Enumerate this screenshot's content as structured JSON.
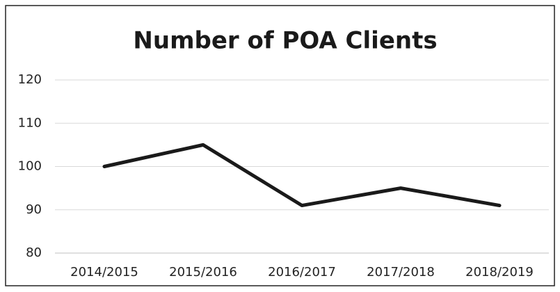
{
  "chart_data": {
    "type": "line",
    "title": "Number of POA Clients",
    "categories": [
      "2014/2015",
      "2015/2016",
      "2016/2017",
      "2017/2018",
      "2018/2019"
    ],
    "values": [
      100,
      105,
      91,
      95,
      91
    ],
    "color": "#1a1a1a",
    "ylim": [
      80,
      120
    ],
    "yticks": [
      80,
      90,
      100,
      110,
      120
    ],
    "grid": true
  }
}
